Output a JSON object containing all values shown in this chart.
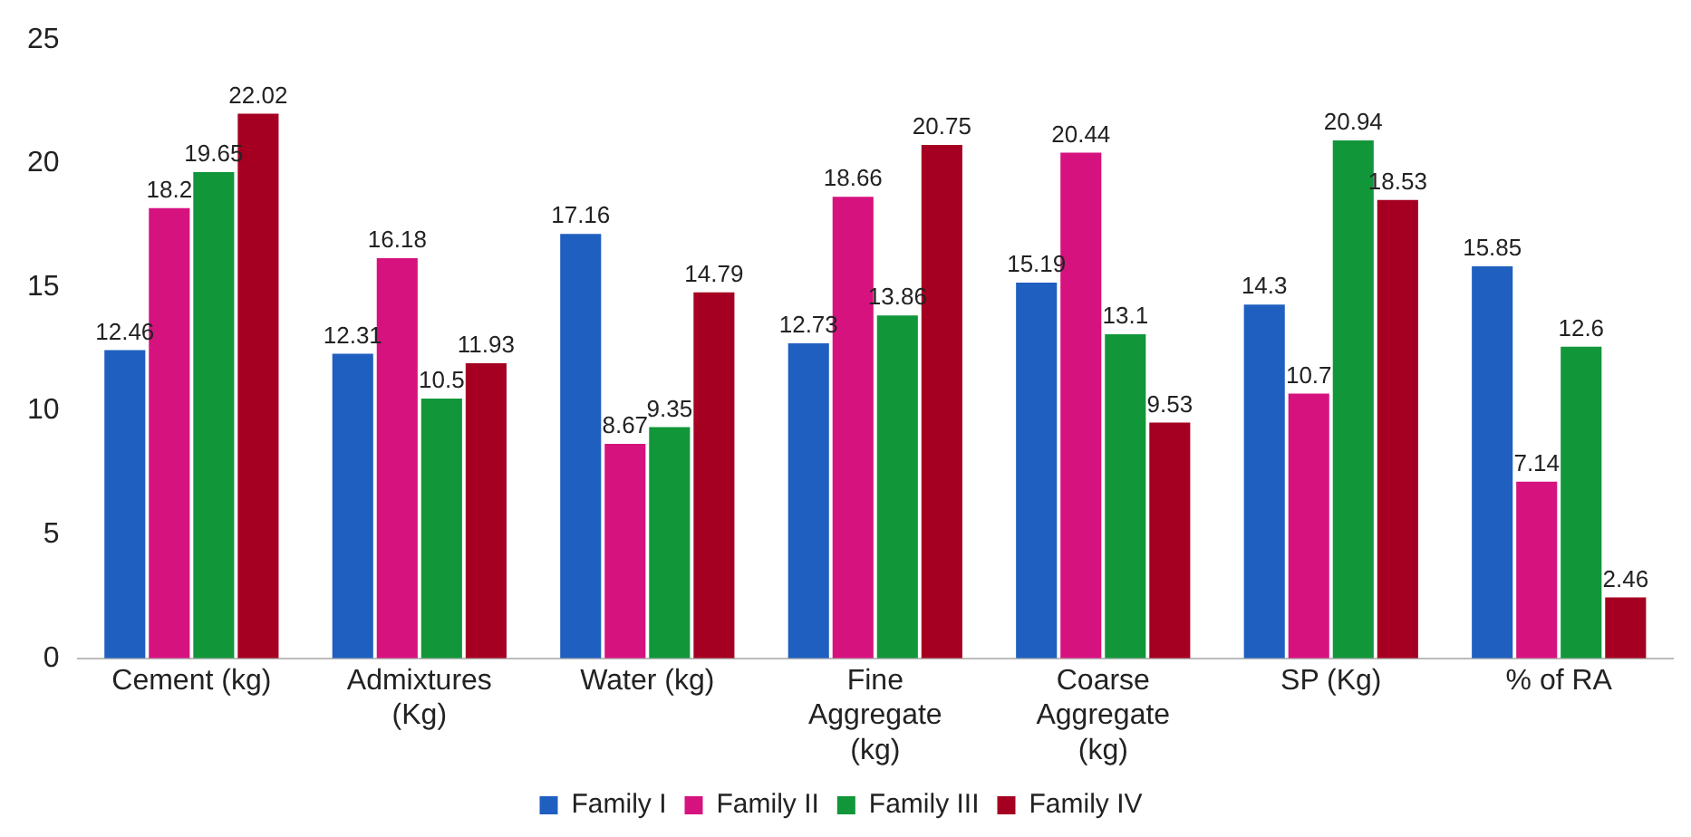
{
  "chart_data": {
    "type": "bar",
    "categories": [
      "Cement (kg)",
      "Admixtures (Kg)",
      "Water (kg)",
      "Fine Aggregate (kg)",
      "Coarse Aggregate (kg)",
      "SP (Kg)",
      "% of RA"
    ],
    "series": [
      {
        "name": "Family I",
        "color": "#1f5fbf",
        "values": [
          12.46,
          12.31,
          17.16,
          12.73,
          15.19,
          14.3,
          15.85
        ]
      },
      {
        "name": "Family II",
        "color": "#d6127f",
        "values": [
          18.2,
          16.18,
          8.67,
          18.66,
          20.44,
          10.7,
          7.14
        ]
      },
      {
        "name": "Family III",
        "color": "#12963a",
        "values": [
          19.65,
          10.5,
          9.35,
          13.86,
          13.1,
          20.94,
          12.6
        ]
      },
      {
        "name": "Family IV",
        "color": "#a50021",
        "values": [
          22.02,
          11.93,
          14.79,
          20.75,
          9.53,
          18.53,
          2.46
        ]
      }
    ],
    "ylim": [
      0,
      25
    ],
    "yticks": [
      0,
      5,
      10,
      15,
      20,
      25
    ],
    "grid": false,
    "legend": "bottom",
    "data_labels": true
  }
}
